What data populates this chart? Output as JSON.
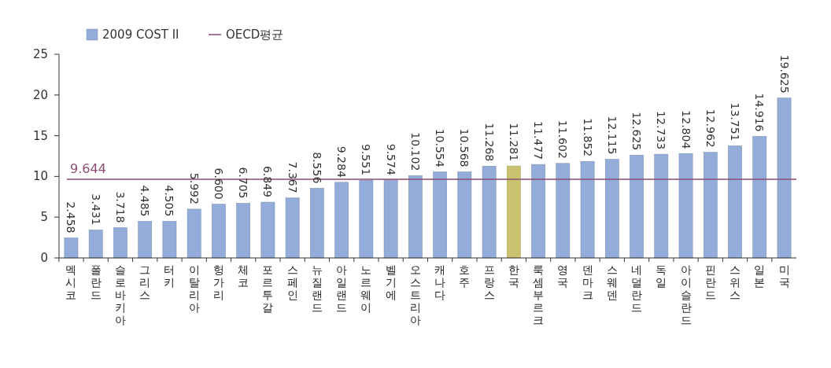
{
  "chart_data": {
    "type": "bar",
    "categories": [
      "멕시코",
      "폴란드",
      "슬로바키아",
      "그리스",
      "터키",
      "이탈리아",
      "헝가리",
      "체코",
      "포르투갈",
      "스페인",
      "뉴질랜드",
      "아일랜드",
      "노르웨이",
      "벨기에",
      "오스트리아",
      "캐나다",
      "호주",
      "프랑스",
      "한국",
      "룩셈부르크",
      "영국",
      "덴마크",
      "스웨덴",
      "네덜란드",
      "독일",
      "아이슬란드",
      "핀란드",
      "스위스",
      "일본",
      "미국"
    ],
    "series": [
      {
        "name": "2009 COST II",
        "color": "#93acd9",
        "colors": [
          "#93acd9",
          "#93acd9",
          "#93acd9",
          "#93acd9",
          "#93acd9",
          "#93acd9",
          "#93acd9",
          "#93acd9",
          "#93acd9",
          "#93acd9",
          "#93acd9",
          "#93acd9",
          "#93acd9",
          "#93acd9",
          "#93acd9",
          "#93acd9",
          "#93acd9",
          "#93acd9",
          "#c9c26e",
          "#93acd9",
          "#93acd9",
          "#93acd9",
          "#93acd9",
          "#93acd9",
          "#93acd9",
          "#93acd9",
          "#93acd9",
          "#93acd9",
          "#93acd9",
          "#93acd9"
        ],
        "values": [
          2.458,
          3.431,
          3.718,
          4.485,
          4.505,
          5.992,
          6.6,
          6.705,
          6.849,
          7.367,
          8.556,
          9.284,
          9.551,
          9.574,
          10.102,
          10.554,
          10.568,
          11.268,
          11.281,
          11.477,
          11.602,
          11.852,
          12.115,
          12.625,
          12.733,
          12.804,
          12.962,
          13.751,
          14.916,
          19.625
        ],
        "value_labels": [
          "2.458",
          "3.431",
          "3.718",
          "4.485",
          "4.505",
          "5.992",
          "6.600",
          "6.705",
          "6.849",
          "7.367",
          "8.556",
          "9.284",
          "9.551",
          "9.574",
          "10.102",
          "10.554",
          "10.568",
          "11.268",
          "11.281",
          "11.477",
          "11.602",
          "11.852",
          "12.115",
          "12.625",
          "12.733",
          "12.804",
          "12.962",
          "13.751",
          "14.916",
          "19.625"
        ]
      }
    ],
    "ylim": [
      0,
      25
    ],
    "yticks": [
      0,
      5,
      10,
      15,
      20,
      25
    ],
    "grid": false,
    "legend": "top left",
    "ref_lines": [
      {
        "axis": "y",
        "value": 9.644,
        "label": "OECD평균",
        "color": "#8b4d72"
      }
    ],
    "annotations": [
      {
        "text": "9.644",
        "y": 9.644
      }
    ]
  }
}
